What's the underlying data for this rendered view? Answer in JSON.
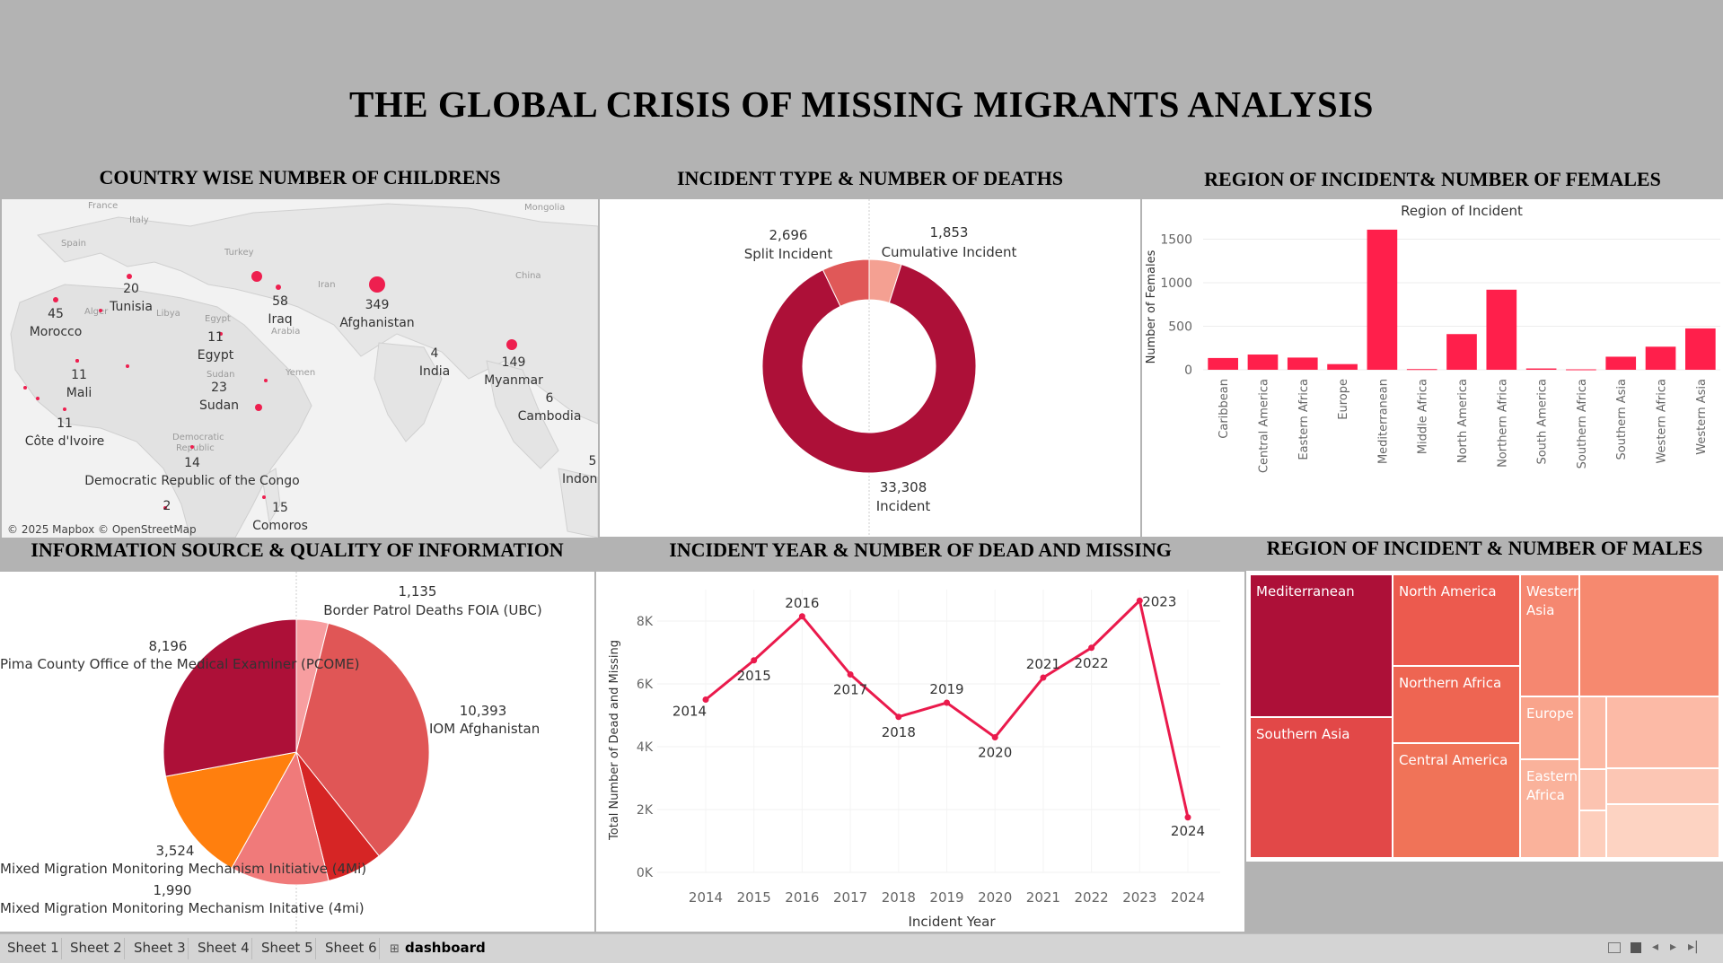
{
  "title": "THE GLOBAL CRISIS OF MISSING MIGRANTS ANALYSIS",
  "panels": {
    "map_title": "COUNTRY  WISE NUMBER OF CHILDRENS",
    "donut_title": "INCIDENT TYPE & NUMBER OF DEATHS",
    "female_title": "REGION OF INCIDENT& NUMBER OF FEMALES",
    "pie_title": "INFORMATION SOURCE & QUALITY OF INFORMATION",
    "line_title": "INCIDENT YEAR & NUMBER OF DEAD AND MISSING",
    "male_title": "REGION OF INCIDENT & NUMBER OF MALES"
  },
  "map": {
    "attribution": "© 2025 Mapbox © OpenStreetMap",
    "base_labels": [
      "France",
      "Italy",
      "Spain",
      "Turkey",
      "Mongolia",
      "China",
      "Iran",
      "Libya",
      "Egypt",
      "Arabia",
      "Sudan",
      "Yemen",
      "Democratic",
      "Republic",
      "Alger"
    ],
    "points": [
      {
        "value": "45",
        "country": "Morocco"
      },
      {
        "value": "20",
        "country": "Tunisia"
      },
      {
        "value": "11",
        "country": "Egypt"
      },
      {
        "value": "58",
        "country": "Iraq"
      },
      {
        "value": "349",
        "country": "Afghanistan"
      },
      {
        "value": "4",
        "country": "India"
      },
      {
        "value": "149",
        "country": "Myanmar"
      },
      {
        "value": "6",
        "country": "Cambodia"
      },
      {
        "value": "11",
        "country": "Mali"
      },
      {
        "value": "23",
        "country": "Sudan"
      },
      {
        "value": "11",
        "country": "Côte d'Ivoire"
      },
      {
        "value": "14",
        "country": "Democratic Republic of the Congo"
      },
      {
        "value": "2",
        "country": ""
      },
      {
        "value": "15",
        "country": "Comoros"
      },
      {
        "value": "5",
        "country": "Indon"
      }
    ]
  },
  "chart_data": [
    {
      "type": "pie",
      "variant": "donut",
      "title": "INCIDENT TYPE & NUMBER OF DEATHS",
      "slices": [
        {
          "label": "Cumulative Incident",
          "value": 1853,
          "display": "1,853",
          "color": "#f4a092"
        },
        {
          "label": "Incident",
          "value": 33308,
          "display": "33,308",
          "color": "#ad1038"
        },
        {
          "label": "Split Incident",
          "value": 2696,
          "display": "2,696",
          "color": "#e05858"
        }
      ]
    },
    {
      "type": "bar",
      "title": "REGION OF INCIDENT& NUMBER OF FEMALES",
      "xlabel": "Region of Incident",
      "ylabel": "Number of Females",
      "ylim": [
        0,
        1650
      ],
      "yticks": [
        0,
        500,
        1000,
        1500
      ],
      "categories": [
        "Caribbean",
        "Central America",
        "Eastern Africa",
        "Europe",
        "Mediterranean",
        "Middle Africa",
        "North America",
        "Northern Africa",
        "South America",
        "Southern Africa",
        "Southern Asia",
        "Western Africa",
        "Western Asia"
      ],
      "values": [
        135,
        175,
        140,
        65,
        1610,
        8,
        410,
        920,
        15,
        5,
        150,
        265,
        475
      ],
      "color": "#ff1f4b"
    },
    {
      "type": "pie",
      "title": "INFORMATION SOURCE & QUALITY OF INFORMATION",
      "slices": [
        {
          "label": "Border Patrol Deaths FOIA (UBC)",
          "value": 1135,
          "display": "1,135",
          "color": "#f79ea0"
        },
        {
          "label": "IOM Afghanistan",
          "value": 10393,
          "display": "10,393",
          "color": "#e05656"
        },
        {
          "label": "Mixed Migration Monitoring Mechanism Initative (4mi)",
          "value": 1990,
          "display": "1,990",
          "color": "#d62525"
        },
        {
          "label": "Mixed Migration Monitoring Mechanism Initiative (4Mi)",
          "value": 3524,
          "display": "3,524",
          "color": "#f07a7a"
        },
        {
          "label": "",
          "value": 4100,
          "display": "",
          "color": "#ff7f0e"
        },
        {
          "label": "Pima County Office of the Medical Examiner (PCOME)",
          "value": 8196,
          "display": "8,196",
          "color": "#ad1038"
        }
      ]
    },
    {
      "type": "line",
      "title": "INCIDENT YEAR & NUMBER OF DEAD AND MISSING",
      "xlabel": "Incident Year",
      "ylabel": "Total Number of Dead and Missing",
      "ylim": [
        0,
        9000
      ],
      "yticks": [
        0,
        2000,
        4000,
        6000,
        8000
      ],
      "ytick_labels": [
        "0K",
        "2K",
        "4K",
        "6K",
        "8K"
      ],
      "x": [
        2014,
        2015,
        2016,
        2017,
        2018,
        2019,
        2020,
        2021,
        2022,
        2023,
        2024
      ],
      "y": [
        5500,
        6750,
        8150,
        6300,
        4950,
        5400,
        4300,
        6200,
        7150,
        8650,
        1750
      ],
      "color": "#ea1a4c"
    },
    {
      "type": "heatmap",
      "variant": "treemap",
      "title": "REGION OF INCIDENT & NUMBER OF MALES",
      "cells": [
        {
          "label": "Mediterranean",
          "color": "#ad1038"
        },
        {
          "label": "Southern Asia",
          "color": "#e24848"
        },
        {
          "label": "North America",
          "color": "#ec5a4e"
        },
        {
          "label": "Northern Africa",
          "color": "#ee6552"
        },
        {
          "label": "Central America",
          "color": "#f07358"
        },
        {
          "label": "Western Asia",
          "color": "#f58770"
        },
        {
          "label": "",
          "color": "#f6896f"
        },
        {
          "label": "Europe",
          "color": "#f9a48c"
        },
        {
          "label": "Eastern Africa",
          "color": "#fab29b"
        },
        {
          "label": "",
          "color": "#fcb9a4"
        },
        {
          "label": "",
          "color": "#fcbaa6"
        },
        {
          "label": "",
          "color": "#fcc3b0"
        },
        {
          "label": "",
          "color": "#fcc6b4"
        },
        {
          "label": "",
          "color": "#fdcebc"
        },
        {
          "label": "",
          "color": "#fdd3c2"
        }
      ]
    }
  ],
  "tabs": [
    "Sheet 1",
    "Sheet 2",
    "Sheet 3",
    "Sheet 4",
    "Sheet 5",
    "Sheet 6",
    "dashboard"
  ],
  "active_tab": "dashboard"
}
